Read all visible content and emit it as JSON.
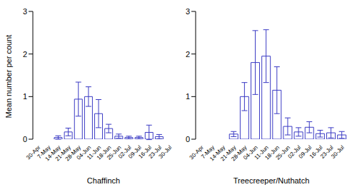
{
  "chart_data": [
    {
      "type": "bar",
      "xlabel": "Chaffinch",
      "ylabel": "Mean number per count",
      "categories": [
        "30-Apr",
        "7-May",
        "14-May",
        "21-May",
        "28-May",
        "04-Jun",
        "11-Jun",
        "18-Jun",
        "25-Jun",
        "02-Jul",
        "09-Jul",
        "16-Jul",
        "23-Jul",
        "30-Jul"
      ],
      "values": [
        0,
        0,
        0.04,
        0.17,
        0.94,
        1.0,
        0.6,
        0.25,
        0.07,
        0.04,
        0.04,
        0.16,
        0.06,
        0
      ],
      "errors": [
        0,
        0,
        0.04,
        0.09,
        0.4,
        0.23,
        0.33,
        0.1,
        0.05,
        0.03,
        0.03,
        0.17,
        0.05,
        0
      ],
      "color": "#3a3ac4",
      "ylim": [
        0,
        3
      ],
      "yticks": [
        0,
        1,
        2,
        3
      ]
    },
    {
      "type": "bar",
      "xlabel": "Treecreeper/Nuthatch",
      "categories": [
        "30-Apr",
        "7-May",
        "14-May",
        "21-May",
        "28-May",
        "04-Jun",
        "11-Jun",
        "18-Jun",
        "25-Jun",
        "02-Jul",
        "09-Jul",
        "16-Jul",
        "23-Jul",
        "30-Jul"
      ],
      "values": [
        0,
        0,
        0,
        0.12,
        1.0,
        1.8,
        1.95,
        1.15,
        0.3,
        0.17,
        0.28,
        0.13,
        0.15,
        0.1
      ],
      "errors": [
        0,
        0,
        0,
        0.06,
        0.33,
        0.75,
        0.62,
        0.55,
        0.2,
        0.1,
        0.13,
        0.08,
        0.12,
        0.08
      ],
      "color": "#3a3ac4",
      "ylim": [
        0,
        3
      ],
      "yticks": [
        0,
        1,
        2,
        3
      ]
    }
  ]
}
